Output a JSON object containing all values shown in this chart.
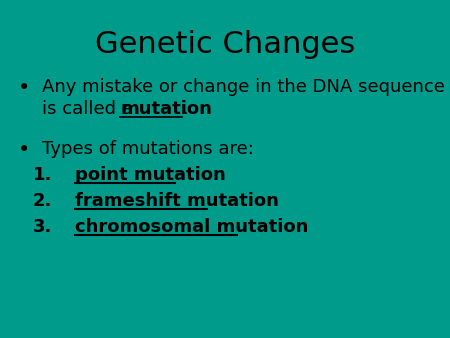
{
  "title": "Genetic Changes",
  "background_color": "#009B8B",
  "text_color": "#000000",
  "title_fontsize": 22,
  "body_fontsize": 13,
  "bullet1_line1": "Any mistake or change in the DNA sequence",
  "bullet1_line2_pre": "is called a ",
  "bullet1_bold": "mutation",
  "bullet1_after": ".",
  "bullet2": "Types of mutations are:",
  "list_items": [
    "point mutation",
    "frameshift mutation",
    "chromosomal mutation"
  ],
  "bg_color": "#009B8B"
}
